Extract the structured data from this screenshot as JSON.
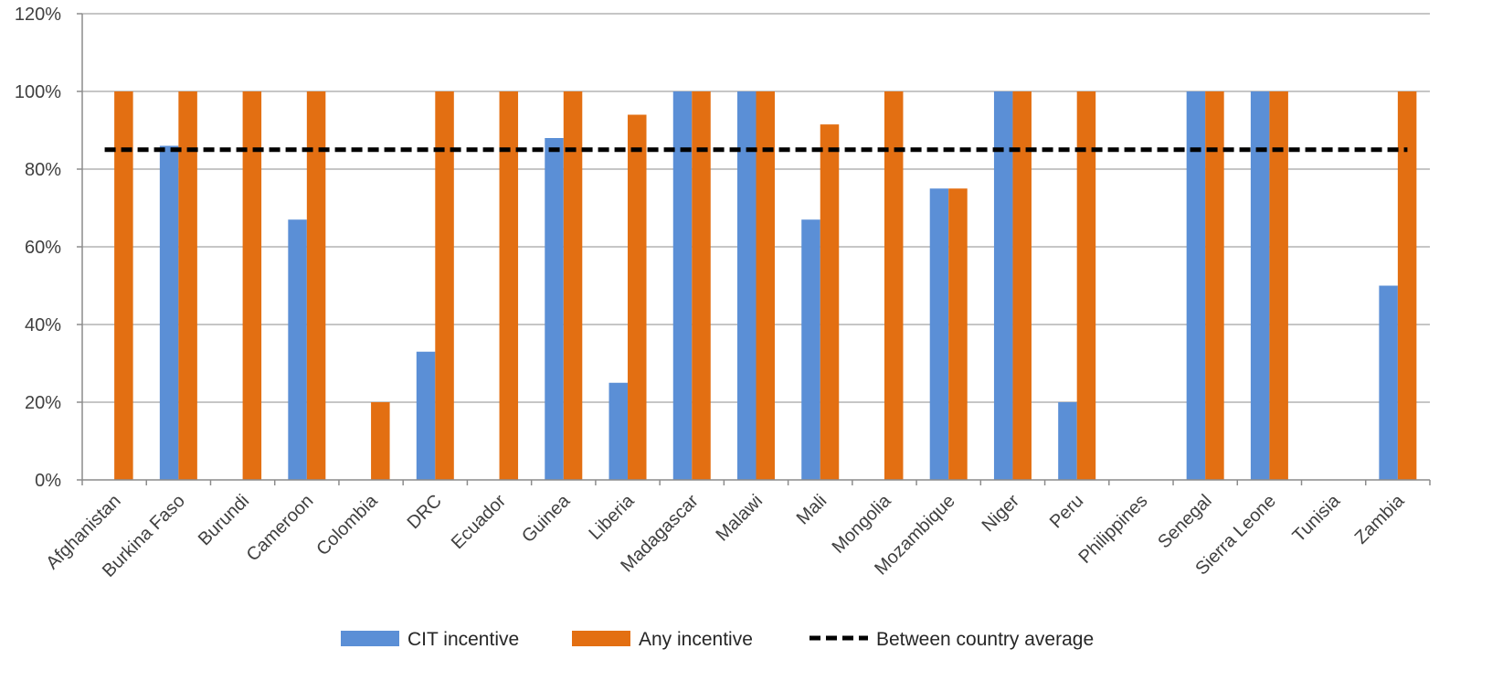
{
  "chart_data": {
    "type": "bar",
    "categories": [
      "Afghanistan",
      "Burkina Faso",
      "Burundi",
      "Cameroon",
      "Colombia",
      "DRC",
      "Ecuador",
      "Guinea",
      "Liberia",
      "Madagascar",
      "Malawi",
      "Mali",
      "Mongolia",
      "Mozambique",
      "Niger",
      "Peru",
      "Philippines",
      "Senegal",
      "Sierra Leone",
      "Tunisia",
      "Zambia"
    ],
    "series": [
      {
        "name": "CIT incentive",
        "color": "#5B8FD6",
        "values": [
          0,
          86,
          0,
          67,
          0,
          33,
          0,
          88,
          25,
          100,
          100,
          67,
          0,
          75,
          100,
          20,
          0,
          100,
          100,
          0,
          50
        ]
      },
      {
        "name": "Any incentive",
        "color": "#E36F12",
        "values": [
          100,
          100,
          100,
          100,
          20,
          100,
          100,
          100,
          94,
          100,
          100,
          91.5,
          100,
          75,
          100,
          100,
          0,
          100,
          100,
          0,
          100
        ]
      }
    ],
    "reference_line": {
      "name": "Between country average",
      "value": 85,
      "style": "dashed",
      "color": "#000000"
    },
    "ylim": [
      0,
      120
    ],
    "yticks": [
      0,
      20,
      40,
      60,
      80,
      100,
      120
    ],
    "ytick_labels": [
      "0%",
      "20%",
      "40%",
      "60%",
      "80%",
      "100%",
      "120%"
    ],
    "grid": true,
    "legend_position": "bottom",
    "title": "",
    "xlabel": "",
    "ylabel": ""
  }
}
